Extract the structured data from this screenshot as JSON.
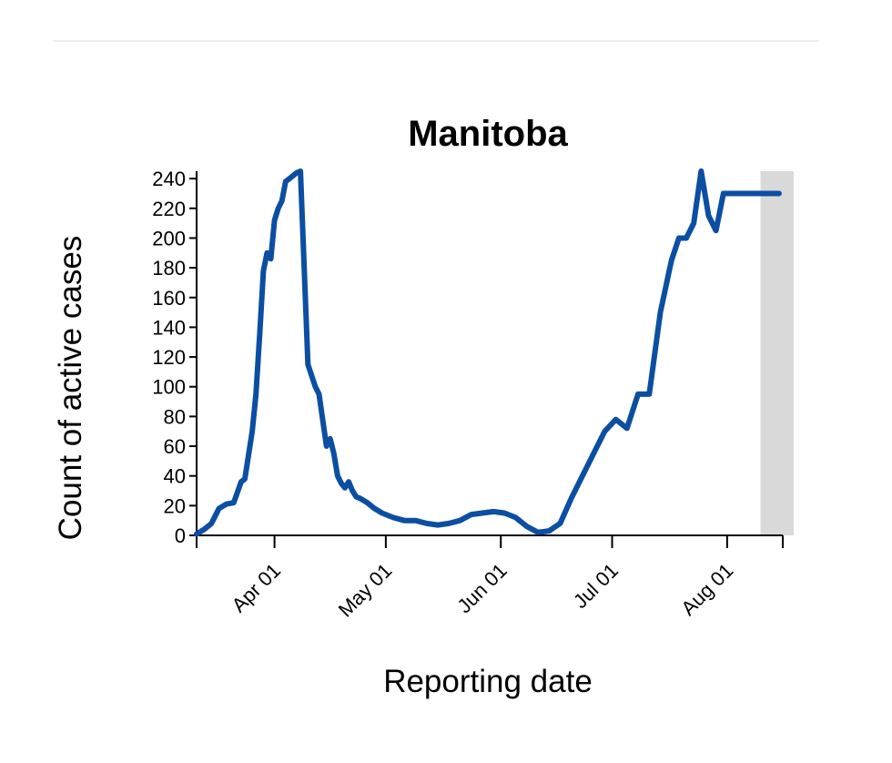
{
  "chart_data": {
    "type": "line",
    "title": "Manitoba",
    "xlabel": "Reporting date",
    "ylabel": "Count of active cases",
    "x_tick_labels": [
      "Apr 01",
      "May 01",
      "Jun 01",
      "Jul 01",
      "Aug 01"
    ],
    "y_ticks": [
      0,
      20,
      40,
      60,
      80,
      100,
      120,
      140,
      160,
      180,
      200,
      220,
      240
    ],
    "ylim": [
      0,
      245
    ],
    "grid": false,
    "line_color": "#0b4ea2",
    "shade_color": "#d9d9d9",
    "series": [
      {
        "x": [
          "2020-03-11",
          "2020-03-13",
          "2020-03-15",
          "2020-03-17",
          "2020-03-19",
          "2020-03-21",
          "2020-03-23",
          "2020-03-24",
          "2020-03-26",
          "2020-03-27",
          "2020-03-28",
          "2020-03-29",
          "2020-03-30",
          "2020-03-31",
          "2020-04-01",
          "2020-04-02",
          "2020-04-03",
          "2020-04-04",
          "2020-04-05",
          "2020-04-06",
          "2020-04-07",
          "2020-04-08",
          "2020-04-10",
          "2020-04-12",
          "2020-04-13",
          "2020-04-15",
          "2020-04-16",
          "2020-04-17",
          "2020-04-18",
          "2020-04-19",
          "2020-04-20",
          "2020-04-21",
          "2020-04-22",
          "2020-04-23",
          "2020-04-24",
          "2020-04-26",
          "2020-04-28",
          "2020-04-30",
          "2020-05-03",
          "2020-05-06",
          "2020-05-09",
          "2020-05-12",
          "2020-05-15",
          "2020-05-18",
          "2020-05-21",
          "2020-05-24",
          "2020-05-27",
          "2020-05-30",
          "2020-06-02",
          "2020-06-05",
          "2020-06-08",
          "2020-06-11",
          "2020-06-14",
          "2020-06-17",
          "2020-06-20",
          "2020-06-23",
          "2020-06-26",
          "2020-06-29",
          "2020-07-02",
          "2020-07-05",
          "2020-07-08",
          "2020-07-11",
          "2020-07-14",
          "2020-07-17",
          "2020-07-19",
          "2020-07-21",
          "2020-07-23",
          "2020-07-25",
          "2020-07-27",
          "2020-07-29",
          "2020-07-31",
          "2020-08-02",
          "2020-08-04",
          "2020-08-05",
          "2020-08-07",
          "2020-08-08",
          "2020-08-09",
          "2020-08-10",
          "2020-08-11",
          "2020-08-12",
          "2020-08-13",
          "2020-08-14",
          "2020-08-15",
          "2020-08-16"
        ],
        "y": [
          1,
          4,
          8,
          18,
          21,
          22,
          36,
          38,
          70,
          95,
          135,
          178,
          190,
          186,
          212,
          220,
          225,
          238,
          240,
          242,
          244,
          245,
          115,
          100,
          95,
          60,
          65,
          55,
          40,
          35,
          32,
          36,
          30,
          26,
          25,
          22,
          18,
          15,
          12,
          10,
          10,
          8,
          7,
          8,
          10,
          14,
          15,
          16,
          15,
          12,
          6,
          2,
          3,
          8,
          25,
          40,
          55,
          70,
          78,
          72,
          95,
          95,
          150,
          185,
          200,
          200,
          210,
          245,
          215,
          205,
          230,
          230,
          230,
          230,
          230,
          230,
          230,
          230,
          230,
          230,
          230,
          230,
          230,
          230
        ]
      }
    ]
  }
}
